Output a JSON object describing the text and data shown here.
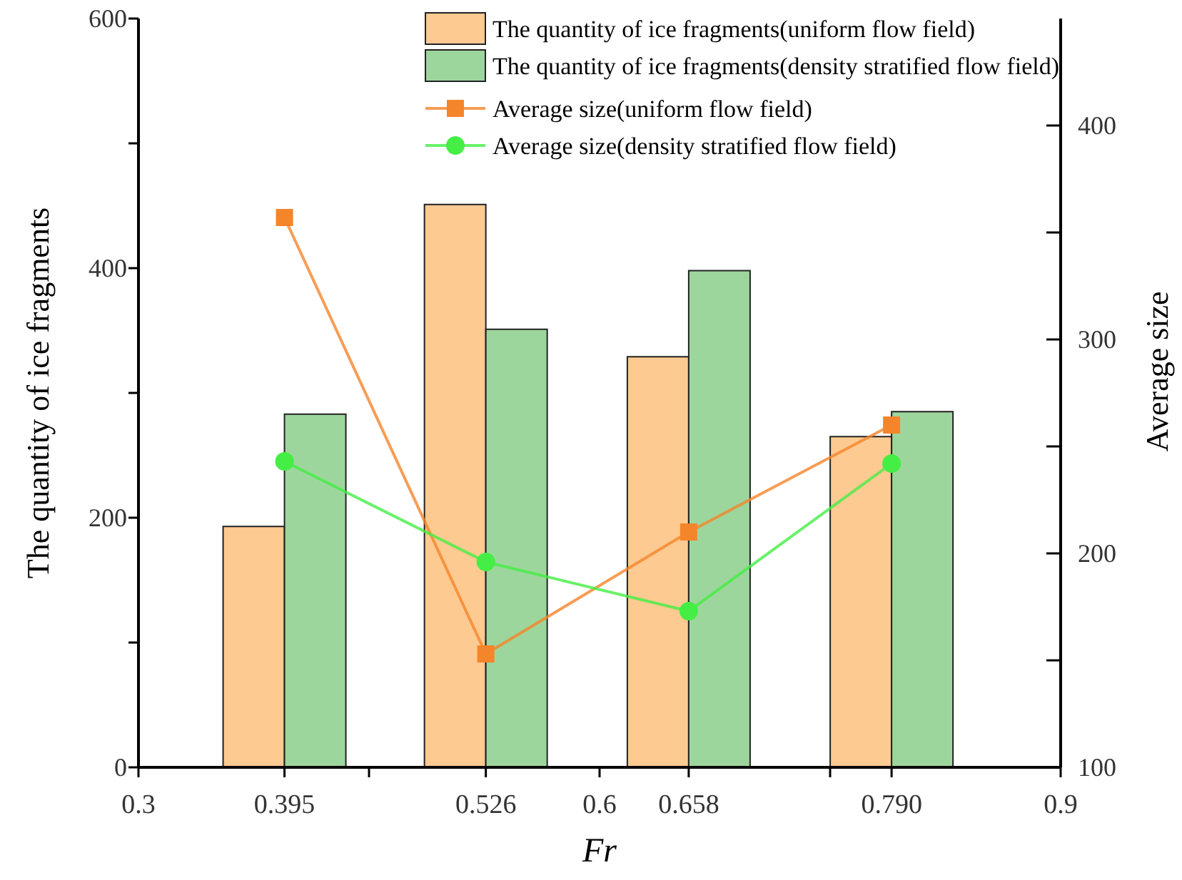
{
  "chart_data": {
    "type": "bar",
    "xlabel": "Fr",
    "ylabel": "The quantity of ice fragments",
    "y2label": "Average size",
    "x": [
      0.395,
      0.526,
      0.658,
      0.79
    ],
    "series": [
      {
        "name": "The quantity of ice fragments(uniform flow field)",
        "color": "#fdca92",
        "values": [
          193,
          451,
          329,
          265
        ]
      },
      {
        "name": "The quantity of ice fragments(density stratified flow field)",
        "color": "#9dd69d",
        "values": [
          283,
          351,
          398,
          285
        ]
      },
      {
        "name": "Average size(uniform flow field)",
        "type": "line",
        "axis": "y2",
        "marker": "square",
        "color": "#f5852a",
        "values": [
          357,
          153,
          210,
          260
        ]
      },
      {
        "name": "Average size(density stratified flow field)",
        "type": "line",
        "axis": "y2",
        "marker": "circle",
        "color": "#44ee44",
        "values": [
          243,
          196,
          173,
          242
        ]
      }
    ],
    "xlim": [
      0.3,
      0.9
    ],
    "xticks": [
      0.3,
      0.395,
      {
        "value": 0.45,
        "label": null
      },
      0.526,
      0.6,
      0.658,
      {
        "value": 0.75,
        "label": null
      },
      {
        "value": 0.79,
        "label": "0.790"
      },
      0.9
    ],
    "ylim": [
      0,
      600
    ],
    "yticks": [
      0,
      {
        "value": 100,
        "label": null
      },
      200,
      {
        "value": 300,
        "label": null
      },
      400,
      {
        "value": 500,
        "label": null
      },
      600
    ],
    "y2lim": [
      100,
      450
    ],
    "y2ticks": [
      100,
      {
        "value": 150,
        "label": null
      },
      200,
      {
        "value": 250,
        "label": null
      },
      300,
      {
        "value": 350,
        "label": null
      },
      400
    ],
    "legend": "top",
    "grid": false
  }
}
